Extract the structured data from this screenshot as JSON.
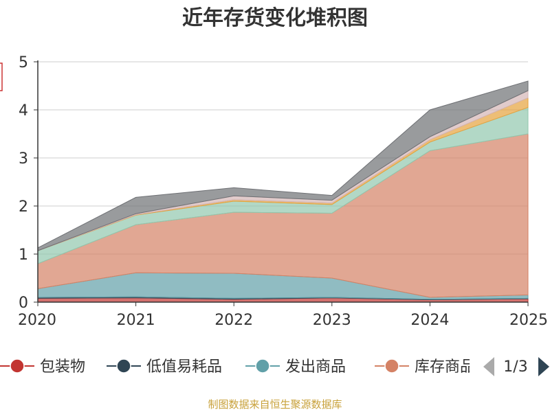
{
  "chart_data": {
    "type": "area",
    "stacked": true,
    "title": "近年存货变化堆积图",
    "x": [
      "2020",
      "2021",
      "2022",
      "2023",
      "2024",
      "2025"
    ],
    "ylim": [
      0,
      5
    ],
    "yticks": [
      "0",
      "1",
      "2",
      "3",
      "4",
      "5"
    ],
    "grid": true,
    "legend_position": "bottom",
    "series": [
      {
        "name": "包装物",
        "color": "#c23531",
        "values": [
          0.08,
          0.09,
          0.06,
          0.09,
          0.05,
          0.07
        ]
      },
      {
        "name": "低值易耗品",
        "color": "#2f4554",
        "values": [
          0.02,
          0.02,
          0.02,
          0.01,
          0.01,
          0.01
        ]
      },
      {
        "name": "发出商品",
        "color": "#61a0a8",
        "values": [
          0.18,
          0.5,
          0.52,
          0.4,
          0.04,
          0.07
        ]
      },
      {
        "name": "库存商品",
        "color": "#d48265",
        "values": [
          0.52,
          1.0,
          1.27,
          1.35,
          3.05,
          3.35
        ]
      },
      {
        "color": "#91c7ae",
        "values": [
          0.27,
          0.2,
          0.23,
          0.18,
          0.18,
          0.55
        ]
      },
      {
        "color": "#e6a23c",
        "values": [
          0.0,
          0.01,
          0.03,
          0.03,
          0.05,
          0.2
        ]
      },
      {
        "color": "#d4b5b5",
        "values": [
          0.0,
          0.02,
          0.08,
          0.06,
          0.06,
          0.15
        ]
      },
      {
        "color": "#6e7074",
        "values": [
          0.06,
          0.34,
          0.17,
          0.1,
          0.56,
          0.2
        ]
      }
    ],
    "legend": {
      "visible_labels": [
        "包装物",
        "低值易耗品",
        "发出商品",
        "库存商品"
      ],
      "page_indicator": "1/3"
    },
    "footer": "制图数据来自恒生聚源数据库",
    "colors": {
      "title": "#333333",
      "axis": "#333333",
      "grid": "#cccccc",
      "footer": "#c8a13a",
      "y_label_fragment": "#cc3333",
      "pager_inactive": "#aaaaaa",
      "pager_active": "#2f4554"
    }
  }
}
